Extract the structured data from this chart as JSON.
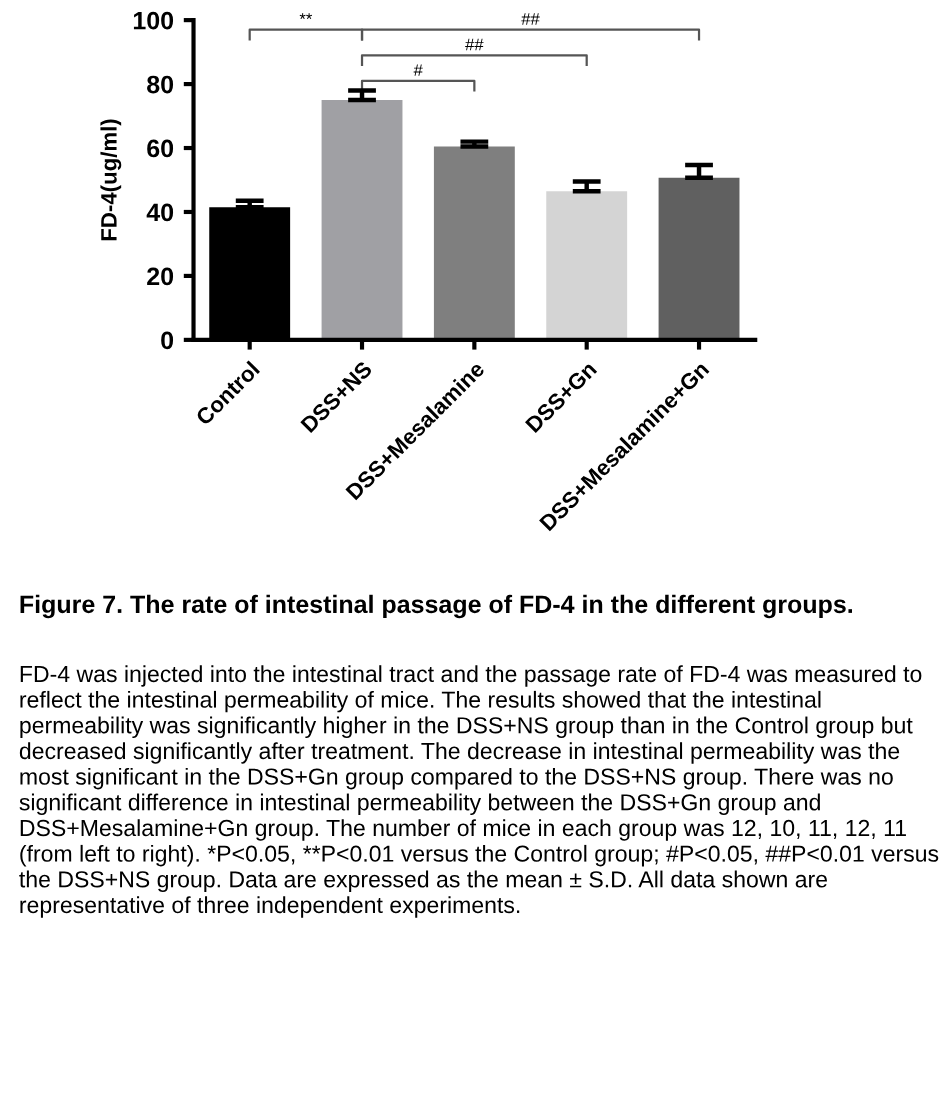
{
  "chart_data": {
    "type": "bar",
    "title": "Figure 7. The rate of intestinal passage of FD-4 in the different groups.",
    "ylabel": "FD-4(ug/ml)",
    "categories": [
      "Control",
      "DSS+NS",
      "DSS+Mesalamine",
      "DSS+Gn",
      "DSS+Mesalamine+Gn"
    ],
    "values": [
      41.5,
      75,
      60.5,
      46.5,
      50.7
    ],
    "errors": [
      2,
      3,
      1.5,
      3,
      4
    ],
    "colors": [
      "#000000",
      "#a0a0a4",
      "#7f7f7f",
      "#d4d4d4",
      "#606060"
    ],
    "ylim": [
      0,
      100
    ],
    "yticks": [
      0,
      20,
      40,
      60,
      80,
      100
    ],
    "grid": false,
    "annotations": [
      "**",
      "#",
      "##",
      "##",
      "FD-4 was injected into the intestinal tract and the passage rate of FD-4 was measured to reflect the intestinal permeability of mice. The results showed that the intestinal permeability was significantly higher in the DSS+NS group than in the Control group but decreased significantly after treatment. The decrease in intestinal permeability was the most significant in the DSS+Gn group compared to the DSS+NS group. There was no significant difference in intestinal permeability between the DSS+Gn group and DSS+Mesalamine+Gn group. The number of mice in each group was 12, 10, 11, 12, 11 (from left to right). *P<0.05, **P<0.01 versus the Control group; #P<0.05, ##P<0.01 versus the DSS+NS group. Data are expressed as the mean ± S.D. All data shown are representative of three independent experiments."
    ]
  }
}
